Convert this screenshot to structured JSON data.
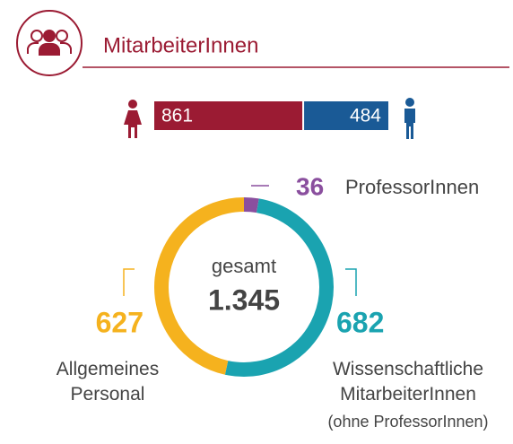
{
  "chart_data": [
    {
      "type": "bar",
      "title": "MitarbeiterInnen",
      "values": [
        861,
        484
      ],
      "colors": [
        "#9b1b33",
        "#1a5a96"
      ]
    },
    {
      "type": "pie",
      "categories": [
        "ProfessorInnen",
        "Wissenschaftliche MitarbeiterInnen",
        "Allgemeines Personal"
      ],
      "values": [
        36,
        682,
        627
      ],
      "colors": [
        "#8a4f9e",
        "#1aa3b0",
        "#f5b21e"
      ],
      "center_label": "gesamt",
      "total": {
        "value": 1345,
        "label": "1.345"
      },
      "annotations": [
        "(ohne ProfessorInnen)"
      ]
    }
  ]
}
